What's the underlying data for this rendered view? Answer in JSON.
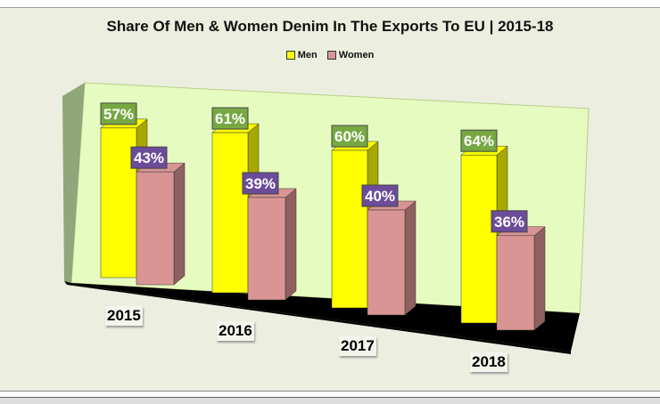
{
  "chart_data": {
    "type": "bar",
    "title": "Share Of Men & Women Denim In The Exports To EU | 2015-18",
    "categories": [
      "2015",
      "2016",
      "2017",
      "2018"
    ],
    "series": [
      {
        "name": "Men",
        "values": [
          57,
          61,
          60,
          64
        ],
        "labels": [
          "57%",
          "61%",
          "60%",
          "64%"
        ],
        "color": "#ffff00",
        "label_color": "#77a843"
      },
      {
        "name": "Women",
        "values": [
          43,
          39,
          40,
          36
        ],
        "labels": [
          "43%",
          "39%",
          "40%",
          "36%"
        ],
        "color": "#d99594",
        "label_color": "#6b4c9a"
      }
    ],
    "unit": "%",
    "legend_position": "top",
    "grid": false
  }
}
